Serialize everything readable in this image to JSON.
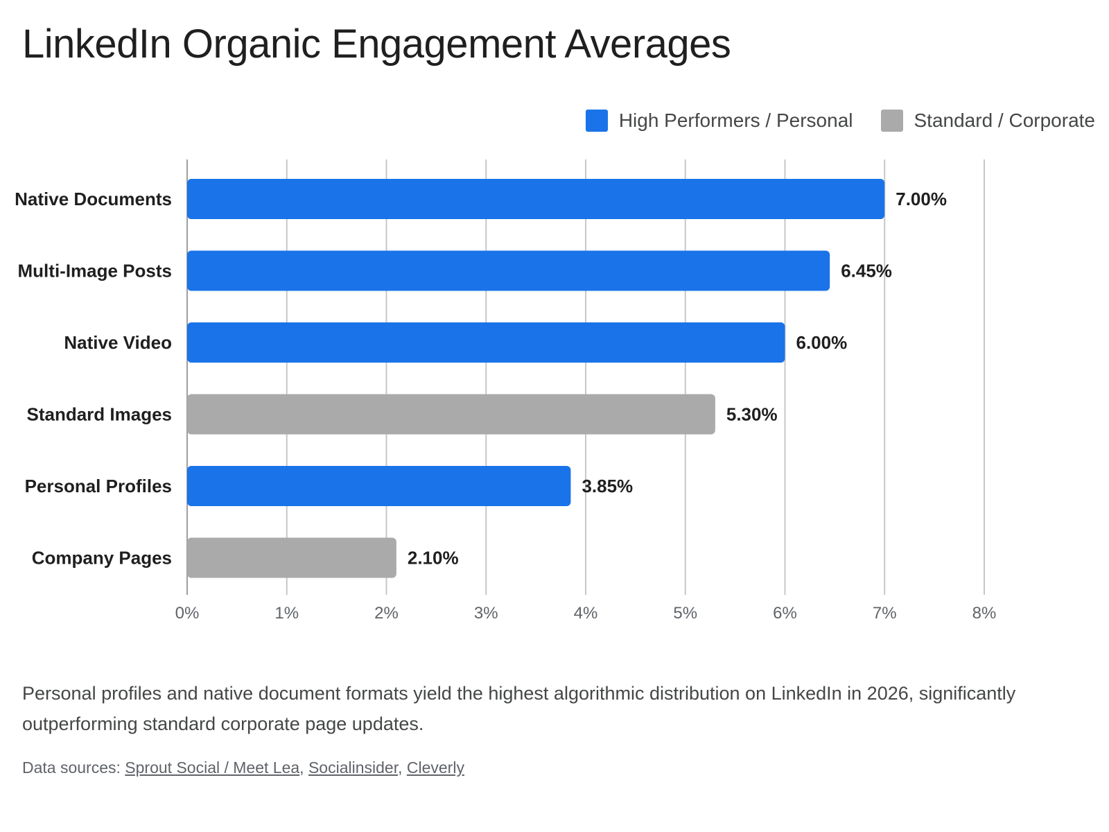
{
  "header": {
    "title": "LinkedIn Organic Engagement Averages"
  },
  "legend": {
    "items": [
      {
        "label": "High Performers / Personal",
        "color": "#1a73e8"
      },
      {
        "label": "Standard / Corporate",
        "color": "#aaaaaa"
      }
    ]
  },
  "chart_data": {
    "type": "bar",
    "orientation": "horizontal",
    "title": "LinkedIn Organic Engagement Averages",
    "xlabel": "",
    "ylabel": "",
    "xlim": [
      0,
      8
    ],
    "x_ticks": [
      "0%",
      "1%",
      "2%",
      "3%",
      "4%",
      "5%",
      "6%",
      "7%",
      "8%"
    ],
    "grid": true,
    "legend_position": "top-right",
    "categories": [
      "Native Documents",
      "Multi-Image Posts",
      "Native Video",
      "Standard Images",
      "Personal Profiles",
      "Company Pages"
    ],
    "values": [
      7.0,
      6.45,
      6.0,
      5.3,
      3.85,
      2.1
    ],
    "value_labels": [
      "7.00%",
      "6.45%",
      "6.00%",
      "5.30%",
      "3.85%",
      "2.10%"
    ],
    "groups": [
      "High Performers / Personal",
      "High Performers / Personal",
      "High Performers / Personal",
      "Standard / Corporate",
      "High Performers / Personal",
      "Standard / Corporate"
    ],
    "colors": {
      "High Performers / Personal": "#1a73e8",
      "Standard / Corporate": "#aaaaaa"
    }
  },
  "footer": {
    "caption": "Personal profiles and native document formats yield the highest algorithmic distribution on LinkedIn in 2026, significantly outperforming standard corporate page updates.",
    "sources_label": "Data sources: ",
    "sources": [
      "Sprout Social / Meet Lea",
      "Socialinsider",
      "Cleverly"
    ]
  }
}
